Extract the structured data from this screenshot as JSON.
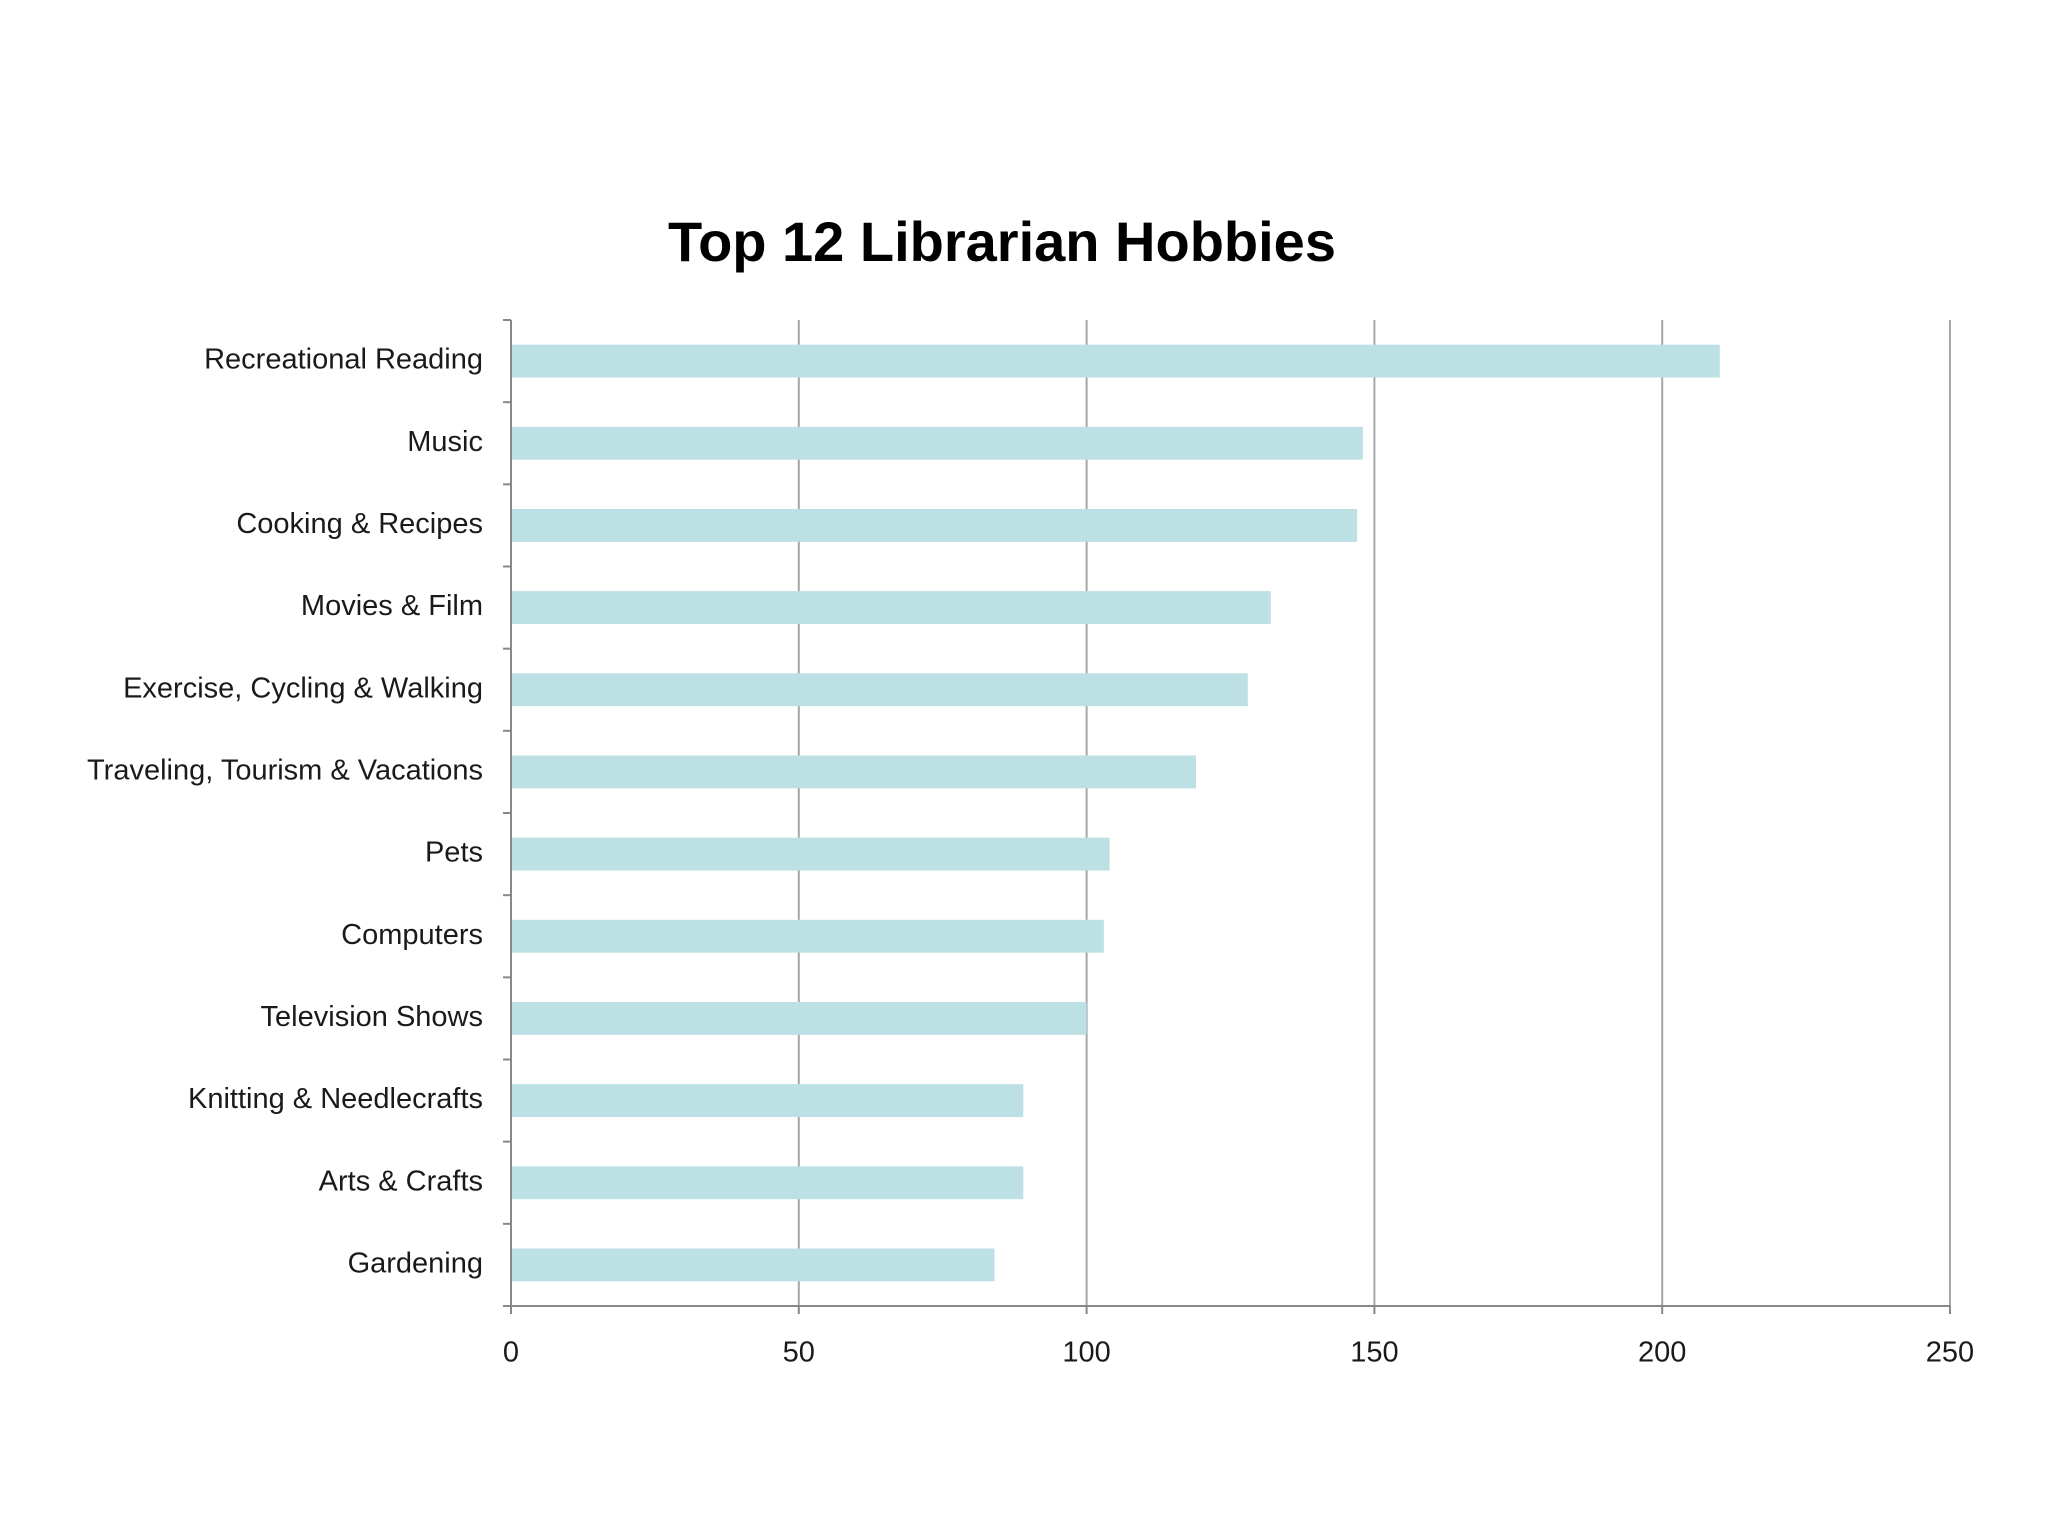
{
  "chart_data": {
    "type": "bar",
    "orientation": "horizontal",
    "title": "Top 12 Librarian Hobbies",
    "categories": [
      "Recreational Reading",
      "Music",
      "Cooking & Recipes",
      "Movies & Film",
      "Exercise, Cycling & Walking",
      "Traveling, Tourism & Vacations",
      "Pets",
      "Computers",
      "Television Shows",
      "Knitting & Needlecrafts",
      "Arts & Crafts",
      "Gardening"
    ],
    "values": [
      210,
      148,
      147,
      132,
      128,
      119,
      104,
      103,
      100,
      89,
      89,
      84
    ],
    "color": "#bce0e3",
    "xlim": [
      0,
      250
    ],
    "xticks": [
      0,
      50,
      100,
      150,
      200,
      250
    ],
    "grid": true
  }
}
